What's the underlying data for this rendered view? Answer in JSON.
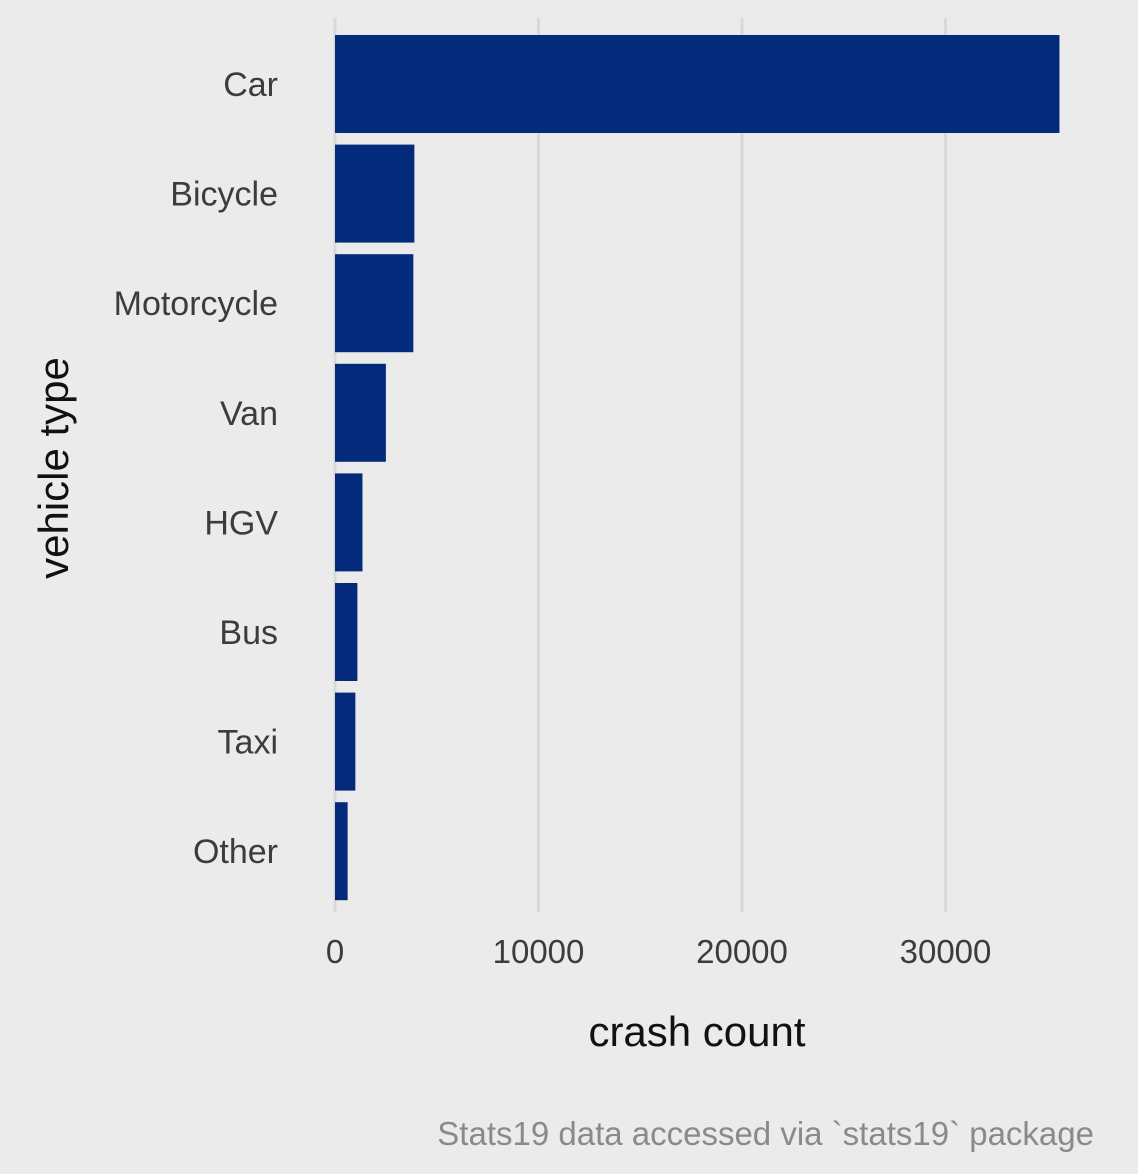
{
  "chart_data": {
    "type": "bar",
    "orientation": "horizontal",
    "categories": [
      "Car",
      "Bicycle",
      "Motorcycle",
      "Van",
      "HGV",
      "Bus",
      "Taxi",
      "Other"
    ],
    "values": [
      35600,
      3900,
      3850,
      2500,
      1350,
      1100,
      1000,
      620
    ],
    "xlabel": "crash count",
    "ylabel": "vehicle type",
    "xlim": [
      0,
      37500
    ],
    "xticks": [
      0,
      10000,
      20000,
      30000
    ],
    "xtick_labels": [
      "0",
      "10000",
      "20000",
      "30000"
    ],
    "caption": "Stats19 data accessed via `stats19` package",
    "grid": "vertical major only",
    "legend": "none",
    "bar_color": "#032a7b",
    "background_color": "#ebebeb",
    "grid_color": "#d9d9d9"
  }
}
